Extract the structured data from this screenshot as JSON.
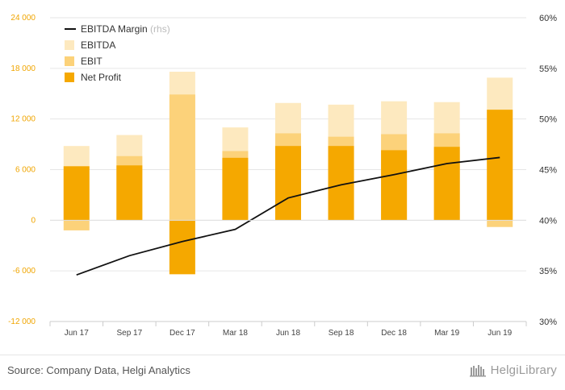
{
  "chart_data": {
    "type": "bar",
    "categories": [
      "Jun 17",
      "Sep 17",
      "Dec 17",
      "Mar 18",
      "Jun 18",
      "Sep 18",
      "Dec 18",
      "Mar 19",
      "Jun 19"
    ],
    "series": [
      {
        "name": "EBITDA",
        "type": "bar",
        "axis": "left",
        "color": "#fde9bf",
        "values": [
          8800,
          10100,
          17600,
          11000,
          13900,
          13700,
          14100,
          14000,
          16900
        ]
      },
      {
        "name": "EBIT",
        "type": "bar",
        "axis": "left",
        "color": "#fcd27a",
        "values": [
          -1200,
          7600,
          14900,
          8200,
          10300,
          9900,
          10200,
          10300,
          -800
        ]
      },
      {
        "name": "Net Profit",
        "type": "bar",
        "axis": "left",
        "color": "#f5a800",
        "values": [
          6400,
          6500,
          -6400,
          7400,
          8800,
          8800,
          8300,
          8700,
          13100
        ]
      },
      {
        "name": "EBITDA Margin",
        "axis_note": "(rhs)",
        "type": "line",
        "axis": "right",
        "color": "#111111",
        "values": [
          34.6,
          36.5,
          37.9,
          39.1,
          42.2,
          43.5,
          44.5,
          45.6,
          46.2
        ]
      }
    ],
    "left_axis": {
      "min": -12000,
      "max": 24000,
      "ticks": [
        -12000,
        -6000,
        0,
        6000,
        12000,
        18000,
        24000
      ],
      "tick_labels": [
        "-12 000",
        "-6 000",
        "0",
        "6 000",
        "12 000",
        "18 000",
        "24 000"
      ]
    },
    "right_axis": {
      "min": 30,
      "max": 60,
      "ticks": [
        30,
        35,
        40,
        45,
        50,
        55,
        60
      ],
      "tick_labels": [
        "30%",
        "35%",
        "40%",
        "45%",
        "50%",
        "55%",
        "60%"
      ]
    },
    "legend_position": "top-left",
    "grid": true
  },
  "footer": {
    "source": "Source: Company Data, Helgi Analytics",
    "brand": "HelgiLibrary",
    "brand_icon": "library-logo-icon"
  }
}
